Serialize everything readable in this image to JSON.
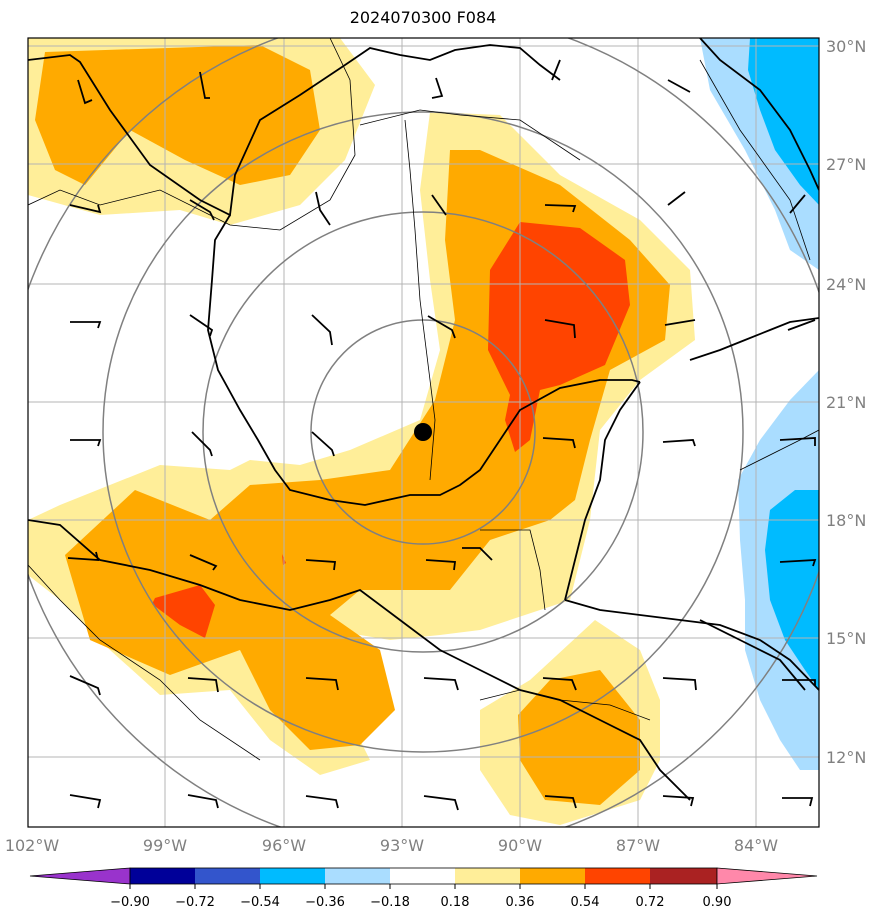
{
  "title": "2024070300 F084",
  "lon_labels": [
    "102°W",
    "99°W",
    "96°W",
    "93°W",
    "90°W",
    "87°W",
    "84°W"
  ],
  "lat_labels": [
    "30°N",
    "27°N",
    "24°N",
    "21°N",
    "18°N",
    "15°N",
    "12°N"
  ],
  "colorbar": {
    "ticks": [
      "−0.90",
      "−0.72",
      "−0.54",
      "−0.36",
      "−0.18",
      "0.18",
      "0.36",
      "0.54",
      "0.72",
      "0.90"
    ],
    "colors": [
      "#9933cc",
      "#000099",
      "#3355cc",
      "#00bbff",
      "#aaddff",
      "#ffffff",
      "#ffee99",
      "#ffaa00",
      "#ff4400",
      "#aa2222",
      "#ff88aa"
    ]
  },
  "storm_center": {
    "lon": -92.5,
    "lat": 20.2
  },
  "fill_colors": {
    "level1": "#ffee99",
    "level2": "#ffaa00",
    "level3": "#ff4400",
    "neg1": "#aaddff",
    "neg2": "#00bbff"
  }
}
